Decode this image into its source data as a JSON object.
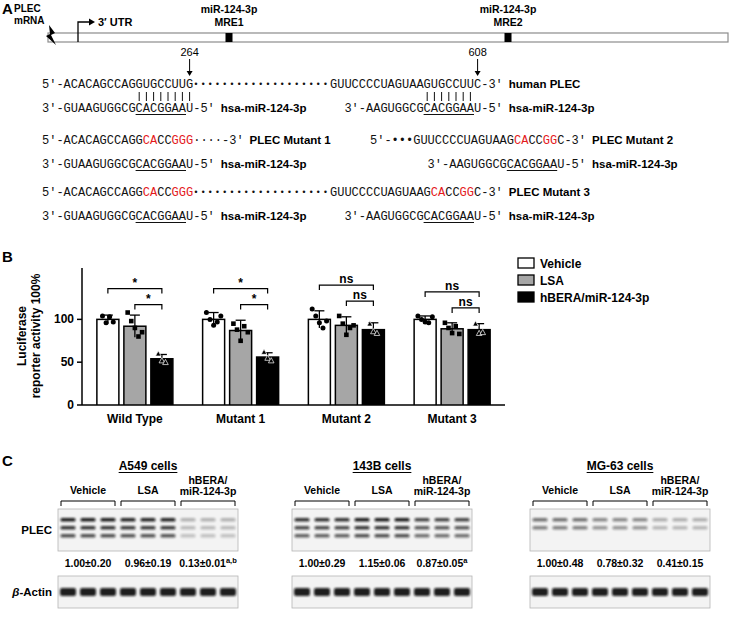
{
  "panel_a": {
    "label": "A",
    "mrna_label": [
      "PLEC",
      "mRNA"
    ],
    "utr_label": "3′ UTR",
    "sites": [
      {
        "mirna": "miR-124-3p",
        "name": "MRE1",
        "position": 264
      },
      {
        "mirna": "miR-124-3p",
        "name": "MRE2",
        "position": 608
      }
    ],
    "constructs": [
      {
        "name": "human PLEC",
        "parts": [
          {
            "mrna": [
              {
                "text": "5′-ACACAGCCAGGUGCCUUG"
              }
            ],
            "mirna": [
              {
                "text": "3′-GUAAGUGGCG"
              },
              {
                "text": "CACGGAA",
                "type": "seed"
              },
              {
                "text": "U-5′"
              }
            ],
            "mirna_label": "hsa-miR-124-3p"
          },
          {
            "gap": "•••••••••••••••••••"
          },
          {
            "mrna": [
              {
                "text": "GUUCCCCUAGUAAGUGCCUUC-3′"
              }
            ],
            "mirna": [
              {
                "text": "3′-AAGUGGCG"
              },
              {
                "text": "CACGGAA",
                "type": "seed"
              },
              {
                "text": "U-5′"
              }
            ],
            "mirna_label": "hsa-miR-124-3p"
          }
        ]
      },
      {
        "name": "PLEC Mutant 1",
        "parts": [
          {
            "mrna": [
              {
                "text": "5′-ACACAGCCAGG"
              },
              {
                "text": "CA",
                "color": "#e41a1c"
              },
              {
                "text": "CC"
              },
              {
                "text": "GGG",
                "color": "#e41a1c"
              },
              {
                "text": "····-3′"
              }
            ],
            "mirna": [
              {
                "text": "3′-GUAAGUGGCG"
              },
              {
                "text": "CACGGAA",
                "type": "seed"
              },
              {
                "text": "U-5′"
              }
            ],
            "mirna_label": "hsa-miR-124-3p"
          }
        ]
      },
      {
        "name": "PLEC Mutant 2",
        "parts": [
          {
            "mrna": [
              {
                "text": "5′-•••GUUCCCCUAGUAAG"
              },
              {
                "text": "CA",
                "color": "#e41a1c"
              },
              {
                "text": "CC"
              },
              {
                "text": "GG",
                "color": "#e41a1c"
              },
              {
                "text": "C-3′"
              }
            ],
            "mirna": [
              {
                "text": "3′-AAGUGGCG"
              },
              {
                "text": "CACGGAA",
                "type": "seed"
              },
              {
                "text": "U-5′"
              }
            ],
            "mirna_label": "hsa-miR-124-3p"
          }
        ]
      },
      {
        "name": "PLEC Mutant 3",
        "parts": [
          {
            "mrna": [
              {
                "text": "5′-ACACAGCCAGG"
              },
              {
                "text": "CA",
                "color": "#e41a1c"
              },
              {
                "text": "CC"
              },
              {
                "text": "GGG",
                "color": "#e41a1c"
              }
            ],
            "mirna": [
              {
                "text": "3′-GUAAGUGGCG"
              },
              {
                "text": "CACGGAA",
                "type": "seed"
              },
              {
                "text": "U-5′"
              }
            ],
            "mirna_label": "hsa-miR-124-3p"
          },
          {
            "gap": "•••••••••••••••••••"
          },
          {
            "mrna": [
              {
                "text": "GUUCCCCUAGUAAG"
              },
              {
                "text": "CA",
                "color": "#e41a1c"
              },
              {
                "text": "CC"
              },
              {
                "text": "GG",
                "color": "#e41a1c"
              },
              {
                "text": "C-3′"
              }
            ],
            "mirna": [
              {
                "text": "3′-AAGUGGCG"
              },
              {
                "text": "CACGGAA",
                "type": "seed"
              },
              {
                "text": "U-5′"
              }
            ],
            "mirna_label": "hsa-miR-124-3p"
          }
        ]
      }
    ]
  },
  "chart_data": {
    "type": "bar",
    "panel_label": "B",
    "y_label": [
      "Luciferase",
      "reporter activity 100%"
    ],
    "categories": [
      "Wild Type",
      "Mutant 1",
      "Mutant 2",
      "Mutant 3"
    ],
    "series": [
      {
        "name": "Vehicle",
        "color": "#ffffff",
        "marker": "circle",
        "values": [
          100,
          100,
          100,
          100
        ],
        "errors": [
          5,
          8,
          10,
          4
        ],
        "points": [
          [
            104,
            96,
            103,
            97
          ],
          [
            108,
            100,
            93,
            97,
            104
          ],
          [
            112,
            104,
            96,
            90,
            98
          ],
          [
            104,
            100,
            97,
            96,
            103
          ]
        ]
      },
      {
        "name": "LSA",
        "color": "#a6a6a6",
        "marker": "square",
        "values": [
          92,
          87,
          93,
          89
        ],
        "errors": [
          13,
          12,
          10,
          7
        ],
        "points": [
          [
            108,
            98,
            90,
            80,
            85
          ],
          [
            95,
            88,
            75,
            92,
            85
          ],
          [
            104,
            95,
            82,
            90,
            93
          ],
          [
            96,
            90,
            84,
            92,
            83
          ]
        ]
      },
      {
        "name": "hBERA/miR-124-3p",
        "color": "#000000",
        "marker": "triangle",
        "values": [
          54,
          56,
          88,
          88
        ],
        "errors": [
          5,
          5,
          8,
          7
        ],
        "points": [
          [
            60,
            52,
            50
          ],
          [
            62,
            55,
            52
          ],
          [
            95,
            86,
            84
          ],
          [
            95,
            84,
            85
          ]
        ]
      }
    ],
    "ylim": [
      0,
      160
    ],
    "yticks": [
      0,
      50,
      100
    ],
    "legend": "upper right",
    "comparisons": [
      {
        "category": 0,
        "series": [
          0,
          2
        ],
        "label": "*"
      },
      {
        "category": 0,
        "series": [
          1,
          2
        ],
        "label": "*"
      },
      {
        "category": 1,
        "series": [
          0,
          2
        ],
        "label": "*"
      },
      {
        "category": 1,
        "series": [
          1,
          2
        ],
        "label": "*"
      },
      {
        "category": 2,
        "series": [
          0,
          2
        ],
        "label": "ns"
      },
      {
        "category": 2,
        "series": [
          1,
          2
        ],
        "label": "ns"
      },
      {
        "category": 3,
        "series": [
          0,
          2
        ],
        "label": "ns"
      },
      {
        "category": 3,
        "series": [
          1,
          2
        ],
        "label": "ns"
      }
    ]
  },
  "panel_c": {
    "panel_label": "C",
    "protein": "PLEC",
    "loading_control": "β-Actin",
    "groups": [
      [
        "Vehicle"
      ],
      [
        "LSA"
      ],
      [
        "hBERA/",
        "miR-124-3p"
      ]
    ],
    "blots": [
      {
        "cell_line": "A549 cells",
        "values": [
          1.0,
          0.96,
          0.13
        ],
        "errors": [
          0.2,
          0.19,
          0.01
        ],
        "value_labels": [
          "1.00±0.20",
          "0.96±0.19",
          "0.13±0.01"
        ],
        "superscripts": [
          null,
          null,
          "a,b"
        ]
      },
      {
        "cell_line": "143B cells",
        "values": [
          1.0,
          1.15,
          0.87
        ],
        "errors": [
          0.29,
          0.06,
          0.05
        ],
        "value_labels": [
          "1.00±0.29",
          "1.15±0.06",
          "0.87±0.05"
        ],
        "superscripts": [
          null,
          null,
          "a"
        ]
      },
      {
        "cell_line": "MG-63 cells",
        "values": [
          1.0,
          0.78,
          0.41
        ],
        "errors": [
          0.48,
          0.32,
          0.15
        ],
        "value_labels": [
          "1.00±0.48",
          "0.78±0.32",
          "0.41±0.15"
        ],
        "superscripts": [
          null,
          null,
          null
        ]
      }
    ]
  }
}
